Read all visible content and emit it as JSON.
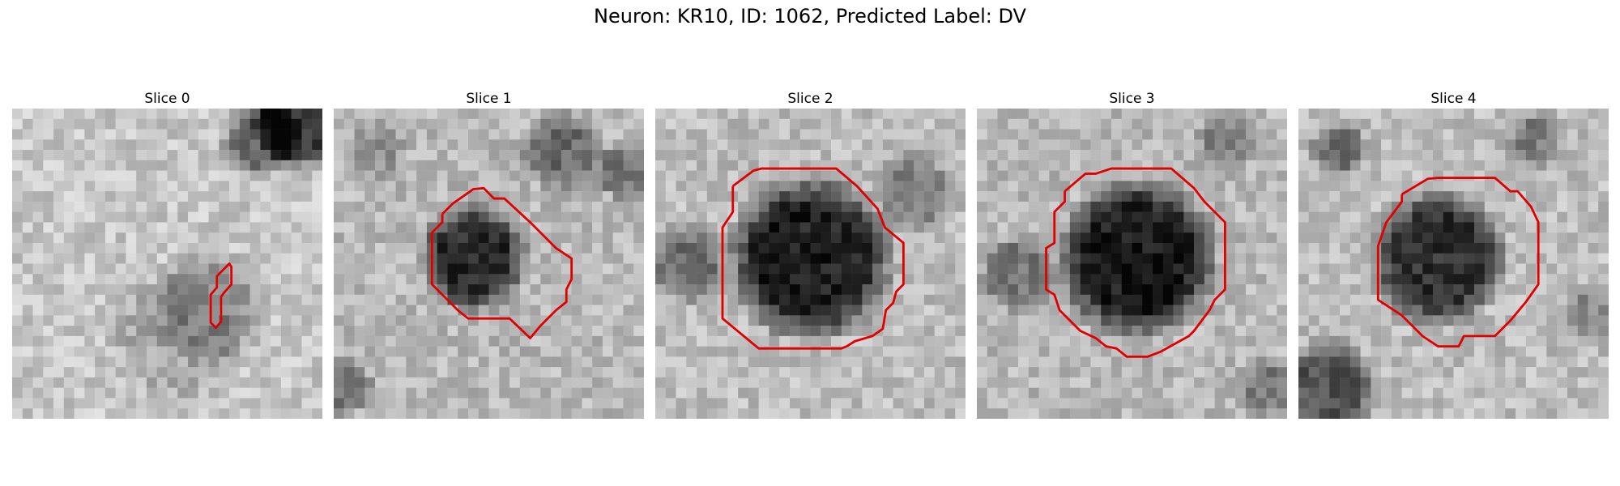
{
  "figure": {
    "title": "Neuron: KR10, ID: 1062, Predicted Label: DV"
  },
  "panels": [
    {
      "title": "Slice 0"
    },
    {
      "title": "Slice 1"
    },
    {
      "title": "Slice 2"
    },
    {
      "title": "Slice 3"
    },
    {
      "title": "Slice 4"
    }
  ],
  "colors": {
    "contour": "#e00000",
    "background": "#ffffff"
  }
}
